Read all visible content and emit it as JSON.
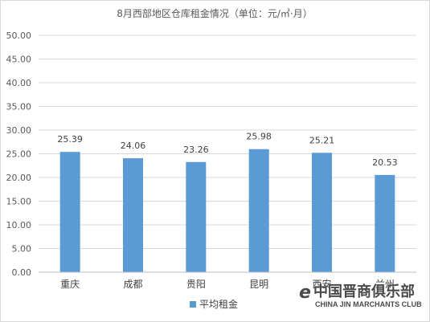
{
  "chart_data": {
    "type": "bar",
    "title": "8月西部地区仓库租金情况（单位：元/㎡·月）",
    "categories": [
      "重庆",
      "成都",
      "贵阳",
      "昆明",
      "西安",
      "兰州"
    ],
    "series": [
      {
        "name": "平均租金",
        "values": [
          25.39,
          24.06,
          23.26,
          25.98,
          25.21,
          20.53
        ],
        "color": "#5b9bd5"
      }
    ],
    "data_labels": [
      "25.39",
      "24.06",
      "23.26",
      "25.98",
      "25.21",
      "20.53"
    ],
    "yticks": [
      "0.00",
      "5.00",
      "10.00",
      "15.00",
      "20.00",
      "25.00",
      "30.00",
      "35.00",
      "40.00",
      "45.00",
      "50.00"
    ],
    "ylim": [
      0,
      50
    ],
    "grid": true,
    "legend_position": "bottom"
  },
  "watermark": {
    "chinese": "中国晋商俱乐部",
    "english": "CHINA JIN MARCHANTS CLUB",
    "logo_letter": "e"
  }
}
